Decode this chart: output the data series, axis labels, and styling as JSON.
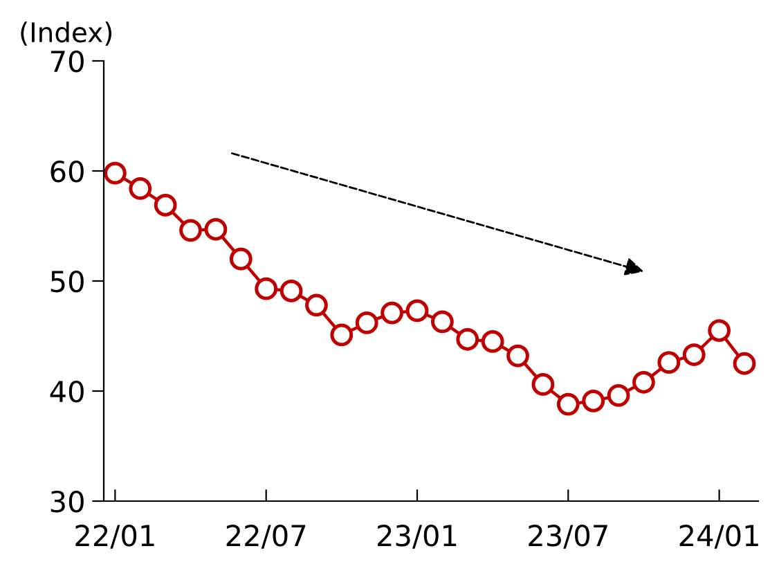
{
  "chart_data": {
    "type": "line",
    "ylabel": "(Index)",
    "categories": [
      "22/01",
      null,
      null,
      null,
      null,
      null,
      "22/07",
      null,
      null,
      null,
      null,
      null,
      "23/01",
      null,
      null,
      null,
      null,
      null,
      "23/07",
      null,
      null,
      null,
      null,
      null,
      "24/01",
      null
    ],
    "series": [
      {
        "color": "#c00000",
        "values": [
          59.8,
          58.4,
          56.9,
          54.6,
          54.7,
          52.0,
          49.3,
          49.1,
          47.8,
          45.1,
          46.2,
          47.1,
          47.3,
          46.3,
          44.7,
          44.5,
          43.2,
          40.6,
          38.8,
          39.1,
          39.6,
          40.8,
          42.6,
          43.3,
          45.5,
          42.5
        ]
      }
    ],
    "ylim": [
      30,
      70
    ],
    "yticks": [
      30,
      40,
      50,
      60,
      70
    ],
    "marker": "circle",
    "line_style": "solid",
    "grid": false,
    "legend": false
  }
}
